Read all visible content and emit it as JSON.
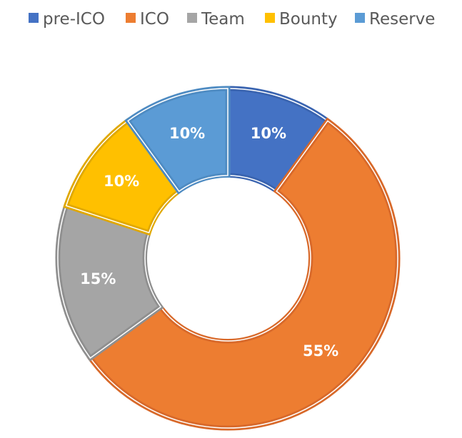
{
  "chart_data": {
    "type": "pie",
    "variant": "doughnut",
    "legend_position": "top",
    "categories": [
      "pre-ICO",
      "ICO",
      "Team",
      "Bounty",
      "Reserve"
    ],
    "values": [
      10,
      55,
      15,
      10,
      10
    ],
    "labels": [
      "10%",
      "55%",
      "15%",
      "10%",
      "10%"
    ],
    "colors": [
      "#4472C4",
      "#ED7D31",
      "#A5A5A5",
      "#FFC000",
      "#5B9BD5"
    ],
    "border_colors": [
      "#3A64B0",
      "#D8692A",
      "#8F8F8F",
      "#E0A800",
      "#4E8BC2"
    ]
  }
}
